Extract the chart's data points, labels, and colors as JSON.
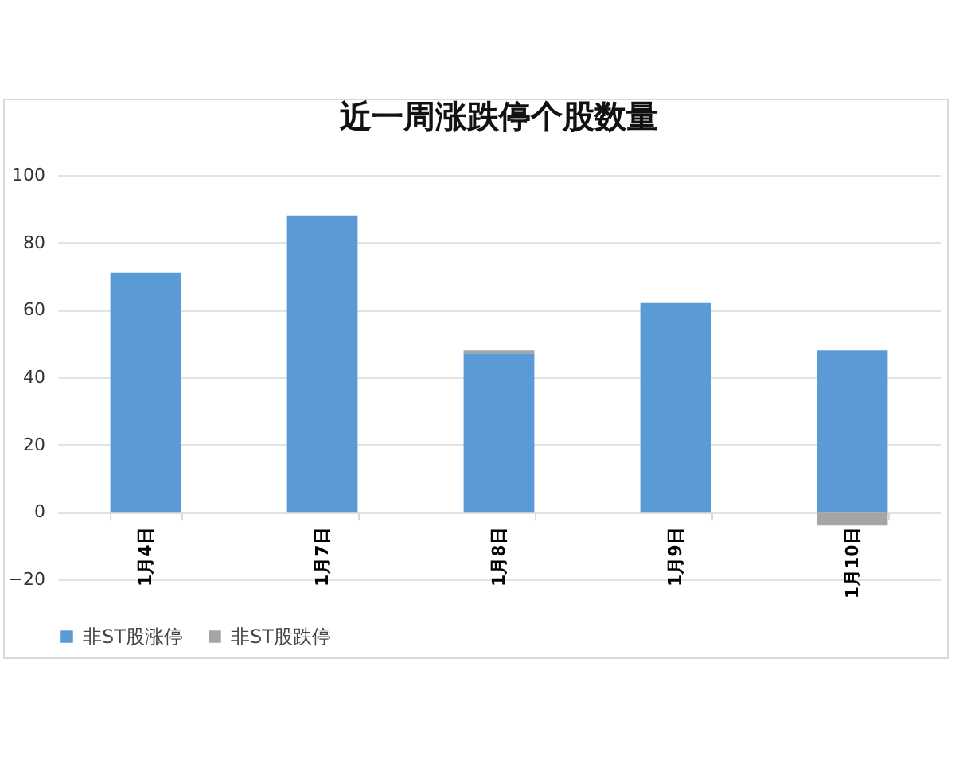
{
  "chart_data": {
    "type": "bar",
    "title": "近一周涨跌停个股数量",
    "categories": [
      "1月4日",
      "1月7日",
      "1月8日",
      "1月9日",
      "1月10日"
    ],
    "series": [
      {
        "name": "非ST股涨停",
        "color": "#5b9bd5",
        "values": [
          71,
          88,
          47,
          62,
          48
        ]
      },
      {
        "name": "非ST股跌停",
        "color": "#a5a5a5",
        "values": [
          null,
          null,
          1,
          null,
          -4
        ]
      }
    ],
    "stacked": true,
    "ylim": [
      -20,
      100
    ],
    "yticks": [
      -20,
      0,
      20,
      40,
      60,
      80,
      100
    ],
    "grid": "y",
    "legend": "bottom"
  }
}
